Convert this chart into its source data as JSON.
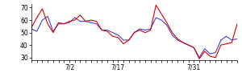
{
  "red_y": [
    54,
    62,
    69,
    57,
    50,
    58,
    57,
    59,
    60,
    64,
    59,
    60,
    59,
    52,
    51,
    47,
    46,
    41,
    44,
    50,
    52,
    50,
    52,
    72,
    65,
    58,
    50,
    45,
    42,
    40,
    38,
    29,
    35,
    31,
    30,
    40,
    41,
    42,
    57
  ],
  "blue_y": [
    53,
    51,
    60,
    63,
    51,
    57,
    57,
    58,
    62,
    59,
    59,
    58,
    57,
    52,
    52,
    50,
    48,
    44,
    44,
    50,
    53,
    52,
    53,
    62,
    60,
    56,
    48,
    44,
    42,
    40,
    38,
    30,
    37,
    33,
    34,
    44,
    47,
    44,
    45
  ],
  "xlim": [
    0,
    38
  ],
  "ylim": [
    28,
    73
  ],
  "yticks": [
    30,
    40,
    50,
    60,
    70
  ],
  "xtick_positions": [
    7,
    16,
    30
  ],
  "xtick_labels": [
    "7/2",
    "7/17",
    "7/31"
  ],
  "red_color": "#dd0000",
  "blue_color": "#4444cc",
  "linewidth": 0.8,
  "bg_color": "#ffffff"
}
